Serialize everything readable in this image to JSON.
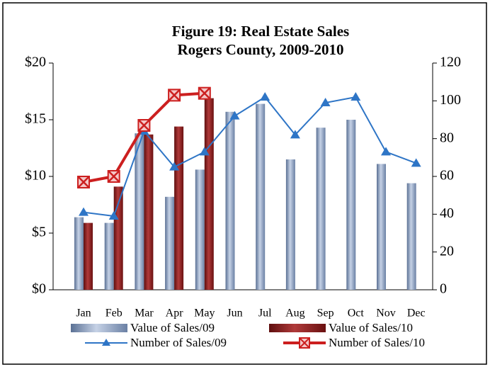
{
  "chart_data": {
    "type": "bar-line",
    "title": "Figure 19: Real Estate Sales",
    "subtitle": "Rogers County,  2009-2010",
    "categories": [
      "Jan",
      "Feb",
      "Mar",
      "Apr",
      "May",
      "Jun",
      "Jul",
      "Aug",
      "Sep",
      "Oct",
      "Nov",
      "Dec"
    ],
    "series": [
      {
        "name": "Value of Sales/09",
        "type": "bar",
        "color": "#7f96b8",
        "values": [
          6.4,
          5.9,
          13.8,
          8.2,
          10.6,
          15.7,
          16.4,
          11.5,
          14.3,
          15.0,
          11.1,
          9.4
        ]
      },
      {
        "name": "Value of Sales/10",
        "type": "bar",
        "color": "#8b1a1a",
        "values": [
          5.9,
          9.1,
          13.7,
          14.4,
          16.9,
          null,
          null,
          null,
          null,
          null,
          null,
          null
        ]
      },
      {
        "name": "Number of Sales/09",
        "type": "line",
        "axis": "y2",
        "color": "#2e75c6",
        "marker": "triangle",
        "values": [
          41,
          39,
          84,
          65,
          73,
          92,
          102,
          82,
          99,
          102,
          73,
          67
        ]
      },
      {
        "name": "Number of Sales/10",
        "type": "line",
        "axis": "y2",
        "color": "#cc1f1f",
        "marker": "x",
        "values": [
          57,
          60,
          87,
          103,
          104,
          null,
          null,
          null,
          null,
          null,
          null,
          null
        ]
      }
    ],
    "ylim": [
      0,
      20
    ],
    "yticks": [
      {
        "value": 0,
        "label": "$0"
      },
      {
        "value": 5,
        "label": "$5"
      },
      {
        "value": 10,
        "label": "$10"
      },
      {
        "value": 15,
        "label": "$15"
      },
      {
        "value": 20,
        "label": "$20"
      }
    ],
    "y2lim": [
      0,
      120
    ],
    "y2ticks": [
      0,
      20,
      40,
      60,
      80,
      100,
      120
    ],
    "grid": false
  }
}
